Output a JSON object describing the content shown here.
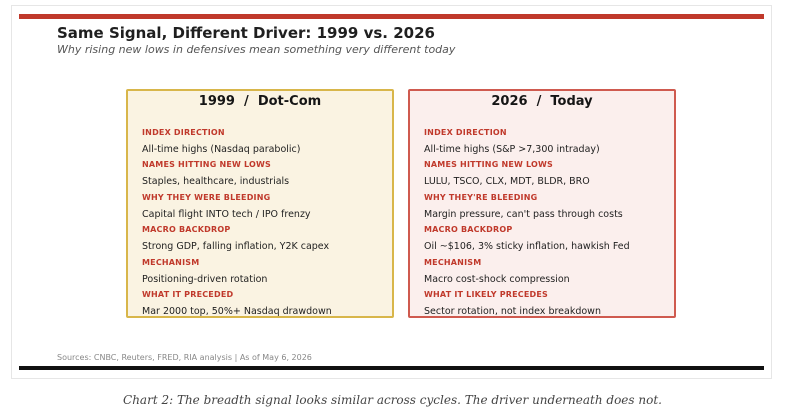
{
  "header": {
    "title": "Same Signal, Different Driver: 1999 vs. 2026",
    "subtitle": "Why rising new lows in defensives mean something very different today"
  },
  "colors": {
    "accent_red": "#c0392b",
    "left_card_bg": "#faf3e2",
    "left_card_border": "#d8b64a",
    "right_card_bg": "#fbefed",
    "right_card_border": "#cf5a4f"
  },
  "panels": [
    {
      "title": "1999  /  Dot-Com",
      "rows": [
        {
          "label": "INDEX DIRECTION",
          "value": "All-time highs (Nasdaq parabolic)"
        },
        {
          "label": "NAMES HITTING NEW LOWS",
          "value": "Staples, healthcare, industrials"
        },
        {
          "label": "WHY THEY WERE BLEEDING",
          "value": "Capital flight INTO tech / IPO frenzy"
        },
        {
          "label": "MACRO BACKDROP",
          "value": "Strong GDP, falling inflation, Y2K capex"
        },
        {
          "label": "MECHANISM",
          "value": "Positioning-driven rotation"
        },
        {
          "label": "WHAT IT PRECEDED",
          "value": "Mar 2000 top, 50%+ Nasdaq drawdown"
        }
      ]
    },
    {
      "title": "2026  /  Today",
      "rows": [
        {
          "label": "INDEX DIRECTION",
          "value": "All-time highs (S&P >7,300 intraday)"
        },
        {
          "label": "NAMES HITTING NEW LOWS",
          "value": "LULU, TSCO, CLX, MDT, BLDR, BRO"
        },
        {
          "label": "WHY THEY'RE BLEEDING",
          "value": "Margin pressure, can't pass through costs"
        },
        {
          "label": "MACRO BACKDROP",
          "value": "Oil ~$106, 3% sticky inflation, hawkish Fed"
        },
        {
          "label": "MECHANISM",
          "value": "Macro cost-shock compression"
        },
        {
          "label": "WHAT IT LIKELY PRECEDES",
          "value": "Sector rotation, not index breakdown"
        }
      ]
    }
  ],
  "footer": {
    "sources": "Sources: CNBC, Reuters, FRED, RIA analysis  |  As of May 6, 2026"
  },
  "caption": "Chart 2: The breadth signal looks similar across cycles. The driver underneath does not."
}
